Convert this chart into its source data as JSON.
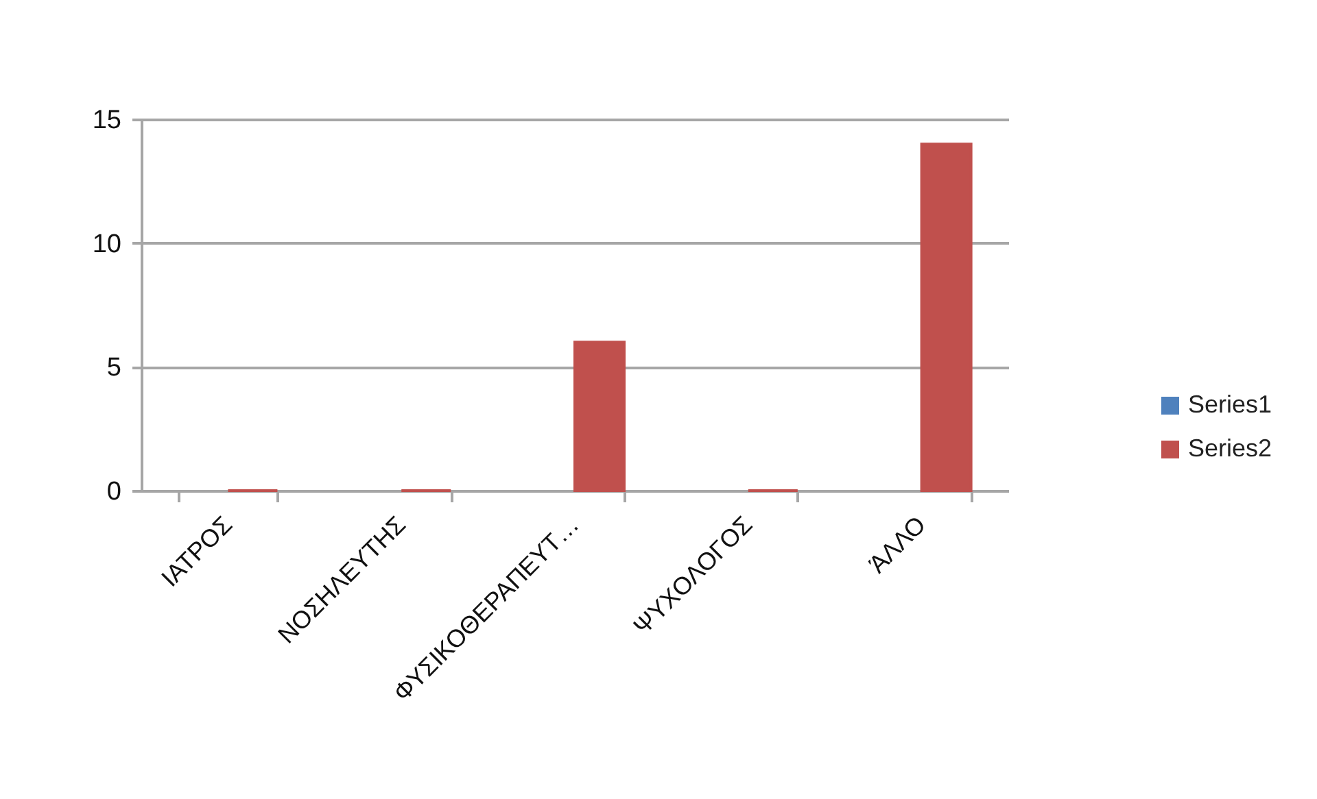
{
  "chart_data": {
    "type": "bar",
    "categories": [
      "ΙΑΤΡΟΣ",
      "ΝΟΣΗΛΕΥΤΗΣ",
      "ΦΥΣΙΚΟΘΕΡΑΠΕΥΤ…",
      "ΨΥΧΟΛΟΓΟΣ",
      "ΆΛΛΟ"
    ],
    "series": [
      {
        "name": "Series1",
        "color": "#4f81bd",
        "values": [
          null,
          null,
          null,
          null,
          null
        ]
      },
      {
        "name": "Series2",
        "color": "#c0504d",
        "values": [
          0,
          0,
          6,
          0,
          14
        ]
      }
    ],
    "ylim": [
      0,
      15
    ],
    "yticks": [
      0,
      5,
      10,
      15
    ],
    "grid": "y",
    "legend": "right"
  }
}
